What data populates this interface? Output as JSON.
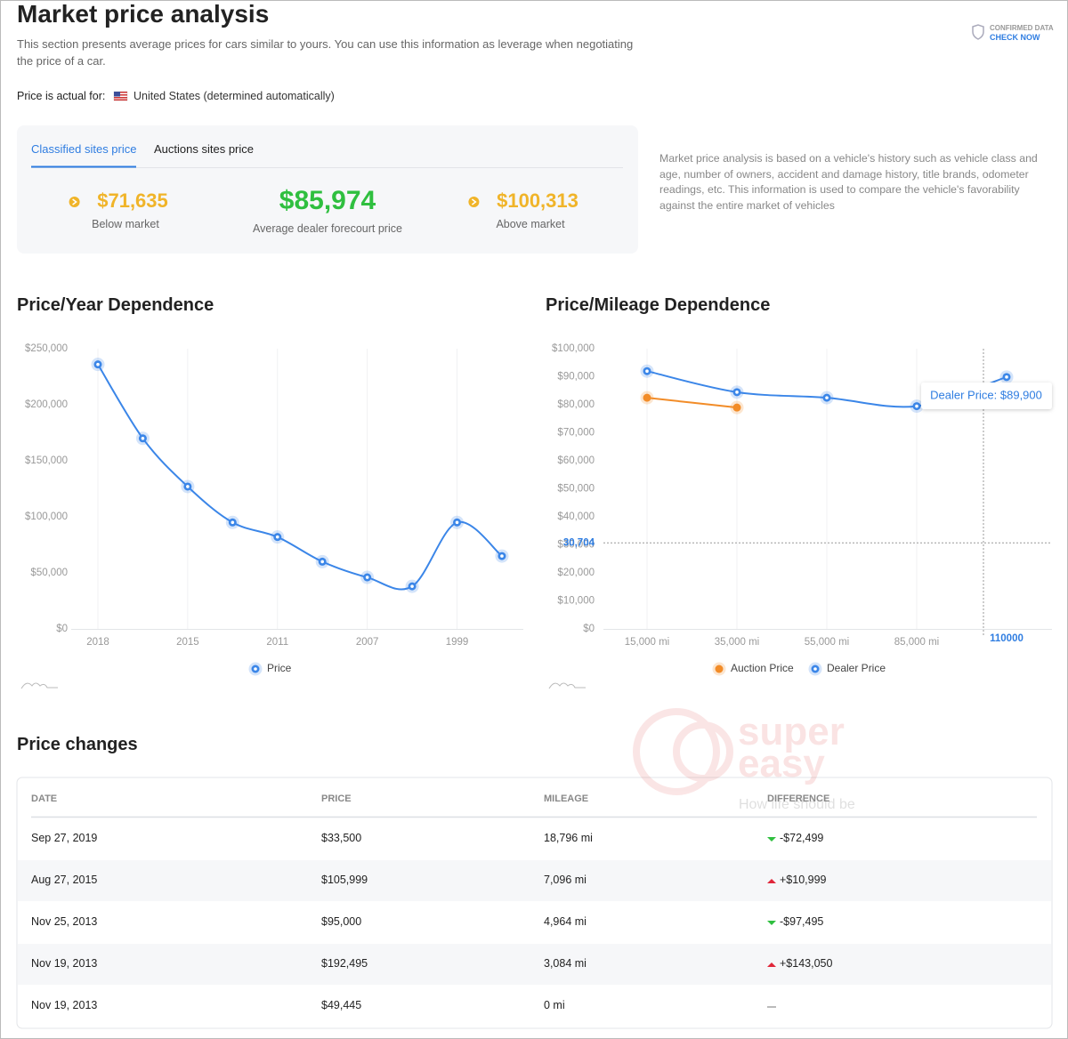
{
  "header": {
    "title": "Market price analysis",
    "description": "This section presents average prices for cars similar to yours. You can use this information as leverage when negotiating the price of a car.",
    "badge_top": "CONFIRMED DATA",
    "badge_link": "CHECK NOW",
    "location_label": "Price is actual for:",
    "location": "United States (determined automatically)"
  },
  "price_card": {
    "tabs": [
      "Classified sites price",
      "Auctions sites price"
    ],
    "active_tab": 0,
    "prices": [
      {
        "value": "$71,635",
        "label": "Below market"
      },
      {
        "value": "$85,974",
        "label": "Average dealer forecourt price"
      },
      {
        "value": "$100,313",
        "label": "Above market"
      }
    ]
  },
  "note": "Market price analysis is based on a vehicle's history such as vehicle class and age, number of owners, accident and damage history, title brands, odometer readings, etc. This information is used to compare the vehicle's favorability against the entire market of vehicles",
  "chart_data": [
    {
      "type": "line",
      "title": "Price/Year Dependence",
      "smooth": true,
      "grid": "x",
      "categories": [
        "2018",
        null,
        "2015",
        null,
        "2011",
        null,
        "2007",
        null,
        "1999",
        null
      ],
      "series": [
        {
          "name": "Price",
          "color": "#3b86e8",
          "values": [
            236000,
            170000,
            127000,
            95000,
            82000,
            60000,
            46000,
            38000,
            95000,
            65000
          ]
        }
      ],
      "ylim": [
        0,
        250000
      ],
      "yticks": [
        {
          "value": 0,
          "label": "$0"
        },
        {
          "value": 50000,
          "label": "$50,000"
        },
        {
          "value": 100000,
          "label": "$100,000"
        },
        {
          "value": 150000,
          "label": "$150,000"
        },
        {
          "value": 200000,
          "label": "$200,000"
        },
        {
          "value": 250000,
          "label": "$250,000"
        }
      ]
    },
    {
      "type": "line",
      "title": "Price/Mileage Dependence",
      "smooth": true,
      "grid": "x",
      "categories": [
        "15,000 mi",
        "35,000 mi",
        "55,000 mi",
        "85,000 mi",
        "110000"
      ],
      "highlight_category": 4,
      "series": [
        {
          "name": "Auction Price",
          "color": "#f28c28",
          "values": [
            82500,
            79000,
            null,
            null,
            null
          ]
        },
        {
          "name": "Dealer Price",
          "color": "#3b86e8",
          "values": [
            92000,
            84500,
            82500,
            79500,
            89900
          ]
        }
      ],
      "ylim": [
        0,
        100000
      ],
      "yticks": [
        {
          "value": 0,
          "label": "$0"
        },
        {
          "value": 10000,
          "label": "$10,000"
        },
        {
          "value": 20000,
          "label": "$20,000"
        },
        {
          "value": 30000,
          "label": "$30,000"
        },
        {
          "value": 40000,
          "label": "$40,000"
        },
        {
          "value": 50000,
          "label": "$50,000"
        },
        {
          "value": 60000,
          "label": "$60,000"
        },
        {
          "value": 70000,
          "label": "$70,000"
        },
        {
          "value": 80000,
          "label": "$80,000"
        },
        {
          "value": 90000,
          "label": "$90,000"
        },
        {
          "value": 100000,
          "label": "$100,000"
        }
      ],
      "crosshair": {
        "value": 30704,
        "label": "30,704"
      },
      "tooltip": "Dealer Price: $89,900"
    }
  ],
  "table": {
    "title": "Price changes",
    "columns": [
      "DATE",
      "PRICE",
      "MILEAGE",
      "DIFFERENCE"
    ],
    "rows": [
      [
        "Sep 27, 2019",
        "$33,500",
        "18,796 mi",
        "-$72,499"
      ],
      [
        "Aug 27, 2015",
        "$105,999",
        "7,096 mi",
        "+$10,999"
      ],
      [
        "Nov 25, 2013",
        "$95,000",
        "4,964 mi",
        "-$97,495"
      ],
      [
        "Nov 19, 2013",
        "$192,495",
        "3,084 mi",
        "+$143,050"
      ],
      [
        "Nov 19, 2013",
        "$49,445",
        "0 mi",
        null
      ]
    ],
    "trends": [
      "down",
      "up",
      "down",
      "up",
      "none"
    ]
  },
  "watermark": {
    "brand": [
      "super",
      "easy"
    ],
    "tagline": "How life should be"
  }
}
